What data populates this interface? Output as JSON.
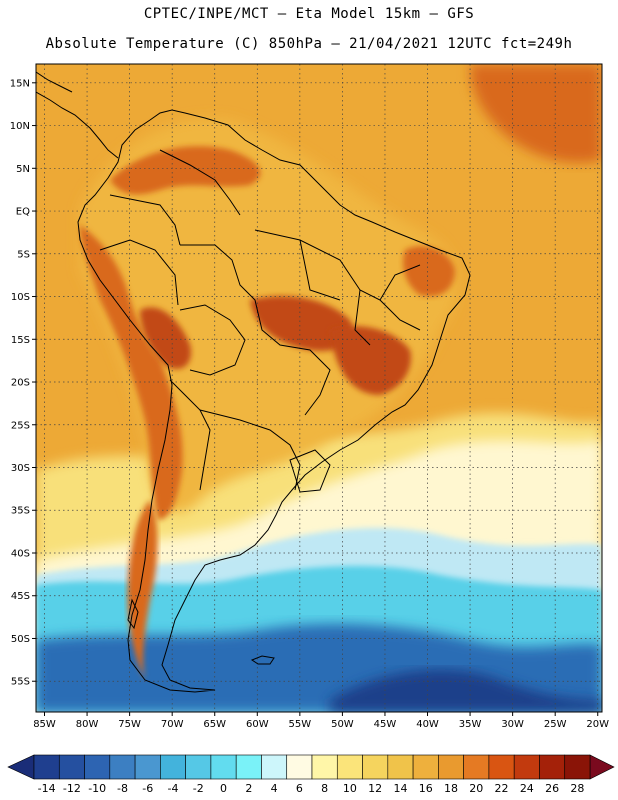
{
  "title_line1": "CPTEC/INPE/MCT –  Eta Model 15km – GFS",
  "title_line2": "Absolute Temperature (C) 850hPa – 21/04/2021 12UTC fct=249h",
  "lat_labels": [
    "15N",
    "10N",
    "5N",
    "EQ",
    "5S",
    "10S",
    "15S",
    "20S",
    "25S",
    "30S",
    "35S",
    "40S",
    "45S",
    "50S",
    "55S"
  ],
  "lon_labels": [
    "85W",
    "80W",
    "75W",
    "70W",
    "65W",
    "60W",
    "55W",
    "50W",
    "45W",
    "40W",
    "35W",
    "30W",
    "25W",
    "20W"
  ],
  "colorbar": {
    "ticks": [
      "-14",
      "-12",
      "-10",
      "-8",
      "-6",
      "-4",
      "-2",
      "0",
      "2",
      "4",
      "6",
      "8",
      "10",
      "12",
      "14",
      "16",
      "18",
      "20",
      "22",
      "24",
      "26",
      "28"
    ],
    "colors": [
      "#1f3f8f",
      "#2550a0",
      "#2d64b2",
      "#3c7fc2",
      "#4a97d0",
      "#43b3dc",
      "#55c8e6",
      "#62dcef",
      "#7af2f8",
      "#cdf6fb",
      "#fffbe3",
      "#fff6a8",
      "#fbe47a",
      "#f5d45e",
      "#f0c34a",
      "#eeb03d",
      "#e99a2f",
      "#e57a23",
      "#d95512",
      "#c23a0e",
      "#a42109",
      "#8a1407"
    ],
    "under_color": "#1a2d78",
    "over_color": "#7a0a1e"
  },
  "field_colors": {
    "ocean_south": "#2a6db5",
    "southern_cyan": "#58d0e8",
    "cold_band": "#bfe8f4",
    "cool_south_atl": "#fff7d0",
    "mid_lat": "#f8e07a",
    "warm_ocean": "#f0b640",
    "tropical": "#eda936",
    "andes_hot": "#d9691e",
    "hot_core": "#c24a16",
    "deep_south": "#1c3f8a"
  }
}
